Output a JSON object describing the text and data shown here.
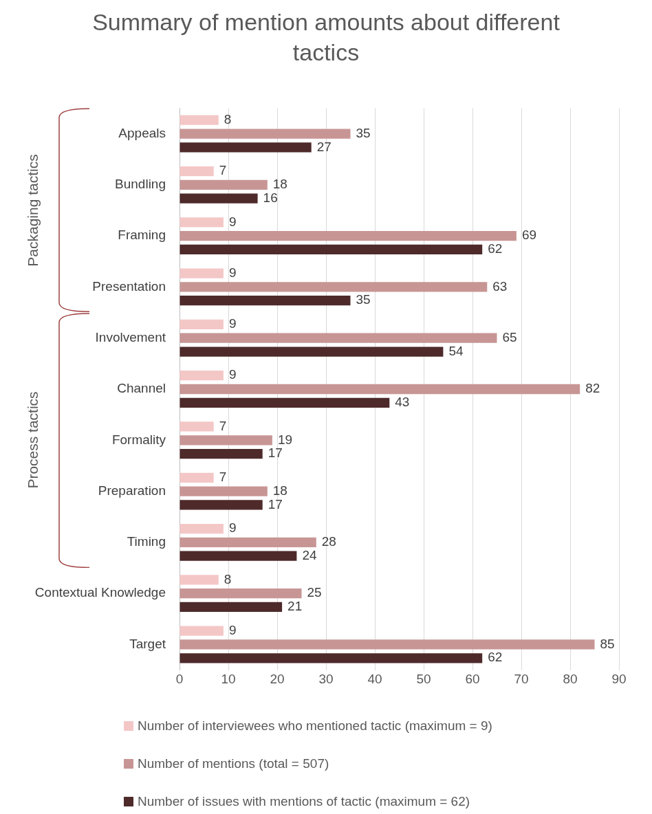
{
  "chart_data": {
    "type": "bar",
    "orientation": "horizontal",
    "title": "Summary of mention amounts about different tactics",
    "categories": [
      "Appeals",
      "Bundling",
      "Framing",
      "Presentation",
      "Involvement",
      "Channel",
      "Formality",
      "Preparation",
      "Timing",
      "Contextual Knowledge",
      "Target"
    ],
    "series": [
      {
        "name": "Number of interviewees who mentioned tactic (maximum = 9)",
        "color": "#f4c7c7",
        "values": [
          8,
          7,
          9,
          9,
          9,
          9,
          7,
          7,
          9,
          8,
          9
        ]
      },
      {
        "name": "Number of mentions (total = 507)",
        "color": "#c89595",
        "values": [
          35,
          18,
          69,
          63,
          65,
          82,
          19,
          18,
          28,
          25,
          85
        ]
      },
      {
        "name": "Number of issues with mentions of tactic (maximum = 62)",
        "color": "#4e2a2b",
        "values": [
          27,
          16,
          62,
          35,
          54,
          43,
          17,
          17,
          24,
          21,
          62
        ]
      }
    ],
    "xlim": [
      0,
      90
    ],
    "xticks": [
      0,
      10,
      20,
      30,
      40,
      50,
      60,
      70,
      80,
      90
    ],
    "grid": "x",
    "legend": "bottom",
    "data_labels": true,
    "annotations": [
      "Packaging tactics",
      "Process tactics"
    ]
  }
}
